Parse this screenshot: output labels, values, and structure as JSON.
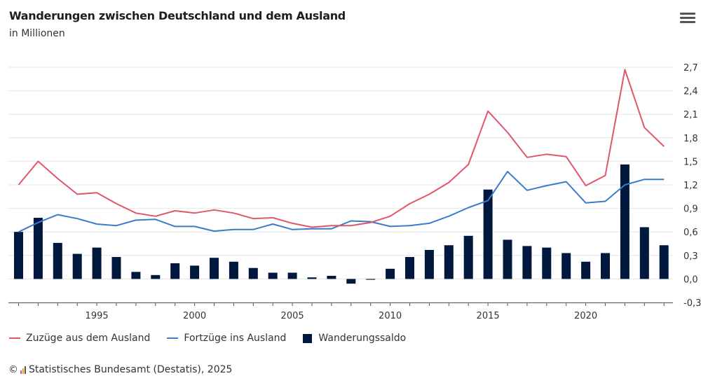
{
  "title": "Wanderungen zwischen Deutschland und dem Ausland",
  "subtitle": "in Millionen",
  "menu_icon": "hamburger-menu-icon",
  "footer": {
    "copyright_symbol": "©",
    "source": "Statistisches Bundesamt (Destatis), 2025"
  },
  "colors": {
    "zuzuege": "#e1566b",
    "fortzuege": "#3b7cc9",
    "saldo": "#00183d",
    "grid": "#e6e6e6"
  },
  "chart_data": {
    "type": "bar+line",
    "title": "Wanderungen zwischen Deutschland und dem Ausland",
    "subtitle": "in Millionen",
    "x": [
      1991,
      1992,
      1993,
      1994,
      1995,
      1996,
      1997,
      1998,
      1999,
      2000,
      2001,
      2002,
      2003,
      2004,
      2005,
      2006,
      2007,
      2008,
      2009,
      2010,
      2011,
      2012,
      2013,
      2014,
      2015,
      2016,
      2017,
      2018,
      2019,
      2020,
      2021,
      2022,
      2023,
      2024
    ],
    "x_ticks": [
      "1995",
      "2000",
      "2005",
      "2010",
      "2015",
      "2020"
    ],
    "y_ticks": [
      "2,7",
      "2,4",
      "2,1",
      "1,8",
      "1,5",
      "1,2",
      "0,9",
      "0,6",
      "0,3",
      "0,0",
      "-0,3"
    ],
    "ylim": [
      -0.3,
      2.7
    ],
    "legend_position": "bottom-left",
    "series": [
      {
        "name": "Zuzüge aus dem Ausland",
        "type": "line",
        "values": [
          1.2,
          1.5,
          1.28,
          1.08,
          1.1,
          0.96,
          0.84,
          0.8,
          0.87,
          0.84,
          0.88,
          0.84,
          0.77,
          0.78,
          0.71,
          0.66,
          0.68,
          0.68,
          0.72,
          0.8,
          0.96,
          1.08,
          1.23,
          1.46,
          2.14,
          1.87,
          1.55,
          1.59,
          1.56,
          1.19,
          1.32,
          2.67,
          1.93,
          1.69
        ]
      },
      {
        "name": "Fortzüge ins Ausland",
        "type": "line",
        "values": [
          0.6,
          0.72,
          0.82,
          0.77,
          0.7,
          0.68,
          0.75,
          0.76,
          0.67,
          0.67,
          0.61,
          0.63,
          0.63,
          0.7,
          0.63,
          0.64,
          0.64,
          0.74,
          0.73,
          0.67,
          0.68,
          0.71,
          0.8,
          0.91,
          1.0,
          1.37,
          1.13,
          1.19,
          1.24,
          0.97,
          0.99,
          1.2,
          1.27,
          1.27
        ]
      },
      {
        "name": "Wanderungssaldo",
        "type": "bar",
        "values": [
          0.6,
          0.78,
          0.46,
          0.32,
          0.4,
          0.28,
          0.09,
          0.05,
          0.2,
          0.17,
          0.27,
          0.22,
          0.14,
          0.08,
          0.08,
          0.02,
          0.04,
          -0.06,
          -0.01,
          0.13,
          0.28,
          0.37,
          0.43,
          0.55,
          1.14,
          0.5,
          0.42,
          0.4,
          0.33,
          0.22,
          0.33,
          1.46,
          0.66,
          0.43
        ]
      }
    ]
  }
}
